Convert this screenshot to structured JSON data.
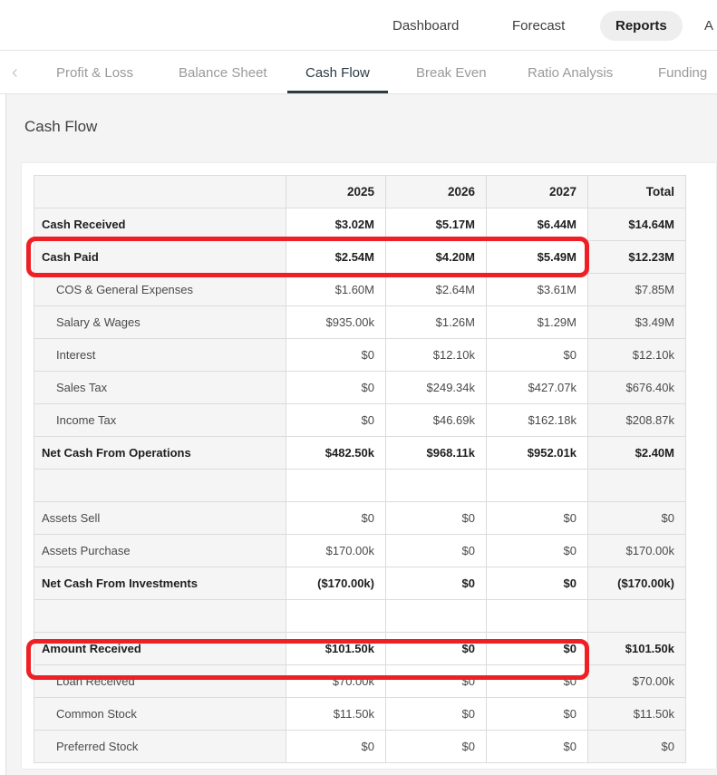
{
  "nav": {
    "items": [
      {
        "label": "Dashboard",
        "active": false
      },
      {
        "label": "Forecast",
        "active": false
      },
      {
        "label": "Reports",
        "active": true
      },
      {
        "label": "A",
        "active": false
      }
    ]
  },
  "subtabs": {
    "back_chevron": "‹",
    "items": [
      {
        "label": "Profit & Loss",
        "active": false
      },
      {
        "label": "Balance Sheet",
        "active": false
      },
      {
        "label": "Cash Flow",
        "active": true
      },
      {
        "label": "Break Even",
        "active": false
      },
      {
        "label": "Ratio Analysis",
        "active": false
      },
      {
        "label": "Funding",
        "active": false
      }
    ]
  },
  "page": {
    "title": "Cash Flow"
  },
  "table": {
    "columns": [
      "",
      "2025",
      "2026",
      "2027",
      "Total"
    ],
    "rows": [
      {
        "label": "Cash Received",
        "bold": true,
        "values": [
          "$3.02M",
          "$5.17M",
          "$6.44M",
          "$14.64M"
        ]
      },
      {
        "label": "Cash Paid",
        "bold": true,
        "highlighted": true,
        "values": [
          "$2.54M",
          "$4.20M",
          "$5.49M",
          "$12.23M"
        ]
      },
      {
        "label": "COS & General Expenses",
        "indent": true,
        "values": [
          "$1.60M",
          "$2.64M",
          "$3.61M",
          "$7.85M"
        ]
      },
      {
        "label": "Salary & Wages",
        "indent": true,
        "values": [
          "$935.00k",
          "$1.26M",
          "$1.29M",
          "$3.49M"
        ]
      },
      {
        "label": "Interest",
        "indent": true,
        "values": [
          "$0",
          "$12.10k",
          "$0",
          "$12.10k"
        ]
      },
      {
        "label": "Sales Tax",
        "indent": true,
        "values": [
          "$0",
          "$249.34k",
          "$427.07k",
          "$676.40k"
        ]
      },
      {
        "label": "Income Tax",
        "indent": true,
        "values": [
          "$0",
          "$46.69k",
          "$162.18k",
          "$208.87k"
        ]
      },
      {
        "label": "Net Cash From Operations",
        "bold": true,
        "values": [
          "$482.50k",
          "$968.11k",
          "$952.01k",
          "$2.40M"
        ]
      },
      {
        "label": "",
        "spacer": true,
        "values": [
          "",
          "",
          "",
          ""
        ]
      },
      {
        "label": "Assets Sell",
        "values": [
          "$0",
          "$0",
          "$0",
          "$0"
        ]
      },
      {
        "label": "Assets Purchase",
        "values": [
          "$170.00k",
          "$0",
          "$0",
          "$170.00k"
        ]
      },
      {
        "label": "Net Cash From Investments",
        "bold": true,
        "values": [
          "($170.00k)",
          "$0",
          "$0",
          "($170.00k)"
        ],
        "negative": [
          true,
          false,
          false,
          true
        ]
      },
      {
        "label": "",
        "spacer": true,
        "values": [
          "",
          "",
          "",
          ""
        ]
      },
      {
        "label": "Amount Received",
        "bold": true,
        "highlighted": true,
        "values": [
          "$101.50k",
          "$0",
          "$0",
          "$101.50k"
        ]
      },
      {
        "label": "Loan Received",
        "indent": true,
        "values": [
          "$70.00k",
          "$0",
          "$0",
          "$70.00k"
        ]
      },
      {
        "label": "Common Stock",
        "indent": true,
        "values": [
          "$11.50k",
          "$0",
          "$0",
          "$11.50k"
        ]
      },
      {
        "label": "Preferred Stock",
        "indent": true,
        "values": [
          "$0",
          "$0",
          "$0",
          "$0"
        ]
      }
    ]
  },
  "annotations": {
    "highlight_color": "#ee2025",
    "highlighted_rows": [
      "Cash Paid",
      "Amount Received"
    ]
  }
}
